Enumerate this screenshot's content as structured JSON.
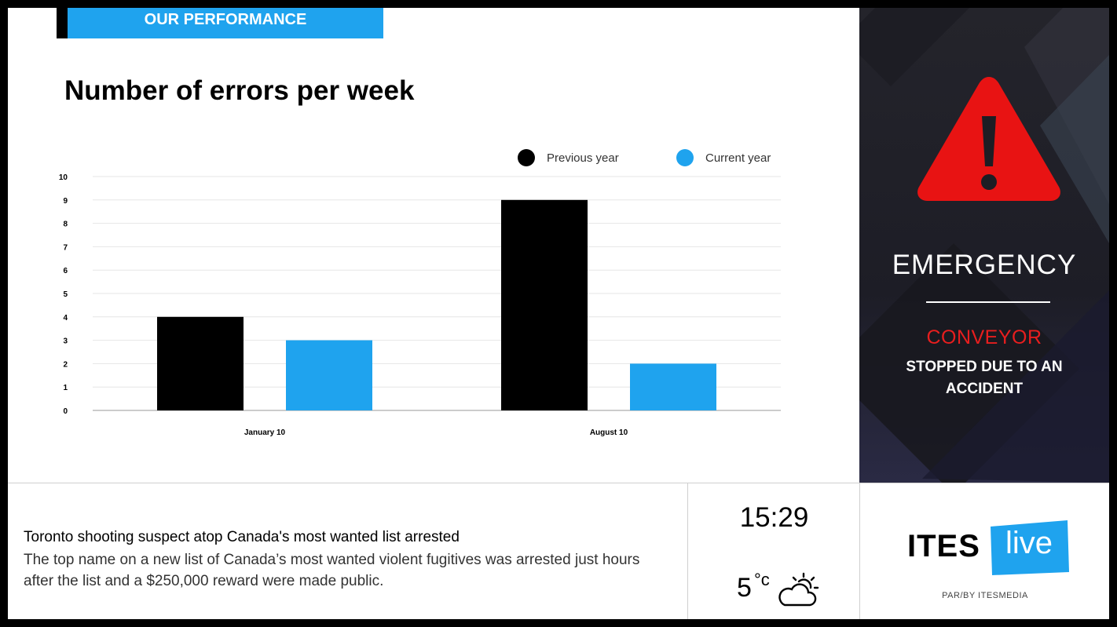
{
  "section": {
    "label": "OUR PERFORMANCE"
  },
  "chart_data": {
    "type": "bar",
    "title": "Number of errors per week",
    "categories": [
      "January 10",
      "August 10"
    ],
    "series": [
      {
        "name": "Previous year",
        "color": "#000000",
        "values": [
          4,
          9
        ]
      },
      {
        "name": "Current year",
        "color": "#1fa3ee",
        "values": [
          3,
          2
        ]
      }
    ],
    "ylim": [
      0,
      10
    ],
    "yticks": [
      0,
      1,
      2,
      3,
      4,
      5,
      6,
      7,
      8,
      9,
      10
    ],
    "grid": true,
    "legend_position": "top-right"
  },
  "alert": {
    "icon": "warning-triangle-icon",
    "title": "EMERGENCY",
    "subject": "CONVEYOR",
    "description": "STOPPED DUE TO AN ACCIDENT",
    "icon_color": "#e81e1e"
  },
  "news": {
    "headline": "Toronto shooting suspect atop Canada's most wanted list arrested",
    "summary": "The top name on a new list of Canada’s most wanted violent fugitives was arrested just hours after the list and a $250,000 reward were made public."
  },
  "clock": {
    "time": "15:29"
  },
  "weather": {
    "temperature": "5",
    "unit": "°c",
    "icon": "partly-cloudy-icon"
  },
  "brand": {
    "name_part1": "ITES",
    "name_part2": "live",
    "tagline": "PAR/BY ITESMEDIA",
    "accent": "#1fa3ee"
  }
}
